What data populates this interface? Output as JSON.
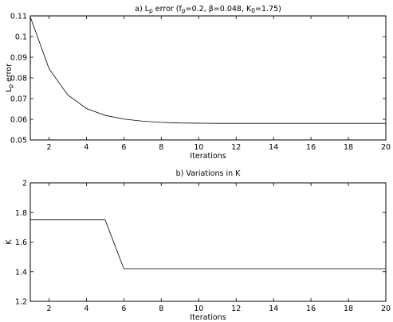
{
  "chart_data": [
    {
      "type": "line",
      "title_parts": [
        {
          "t": "a)  L",
          "sub": false
        },
        {
          "t": "p",
          "sub": true
        },
        {
          "t": " error (f",
          "sub": false
        },
        {
          "t": "p",
          "sub": true
        },
        {
          "t": "=0.2, β=0.048, K",
          "sub": false
        },
        {
          "t": "0",
          "sub": true
        },
        {
          "t": "=1.75)",
          "sub": false
        }
      ],
      "xlabel": "Iterations",
      "ylabel_parts": [
        {
          "t": "L",
          "sub": false
        },
        {
          "t": "p",
          "sub": true
        },
        {
          "t": " error",
          "sub": false
        }
      ],
      "xlim": [
        1,
        20
      ],
      "ylim": [
        0.05,
        0.11
      ],
      "xticks": [
        2,
        4,
        6,
        8,
        10,
        12,
        14,
        16,
        18,
        20
      ],
      "yticks": [
        0.05,
        0.06,
        0.07,
        0.08,
        0.09,
        0.1,
        0.11
      ],
      "ytick_labels": [
        "0.05",
        "0.06",
        "0.07",
        "0.08",
        "0.09",
        "0.1",
        "0.11"
      ],
      "grid": false,
      "series": [
        {
          "x": [
            1,
            2,
            3,
            4,
            5,
            6,
            7,
            8,
            9,
            10,
            11,
            12,
            13,
            14,
            15,
            16,
            17,
            18,
            19,
            20
          ],
          "y": [
            0.1095,
            0.0845,
            0.0718,
            0.0652,
            0.0619,
            0.0601,
            0.0591,
            0.0585,
            0.0582,
            0.0581,
            0.058,
            0.058,
            0.058,
            0.058,
            0.058,
            0.058,
            0.058,
            0.058,
            0.058,
            0.058
          ],
          "color": "#000000"
        }
      ]
    },
    {
      "type": "line",
      "title_parts": [
        {
          "t": "b)  Variations in K",
          "sub": false
        }
      ],
      "xlabel": "Iterations",
      "ylabel_parts": [
        {
          "t": "K",
          "sub": false
        }
      ],
      "xlim": [
        1,
        20
      ],
      "ylim": [
        1.2,
        2.0
      ],
      "xticks": [
        2,
        4,
        6,
        8,
        10,
        12,
        14,
        16,
        18,
        20
      ],
      "yticks": [
        1.2,
        1.4,
        1.6,
        1.8,
        2.0
      ],
      "ytick_labels": [
        "1.2",
        "1.4",
        "1.6",
        "1.8",
        "2"
      ],
      "grid": false,
      "series": [
        {
          "x": [
            1,
            2,
            3,
            4,
            5,
            6,
            7,
            8,
            9,
            10,
            11,
            12,
            13,
            14,
            15,
            16,
            17,
            18,
            19,
            20
          ],
          "y": [
            1.75,
            1.75,
            1.75,
            1.75,
            1.75,
            1.42,
            1.42,
            1.42,
            1.42,
            1.42,
            1.42,
            1.42,
            1.42,
            1.42,
            1.42,
            1.42,
            1.42,
            1.42,
            1.42,
            1.42
          ],
          "color": "#000000"
        }
      ]
    }
  ]
}
